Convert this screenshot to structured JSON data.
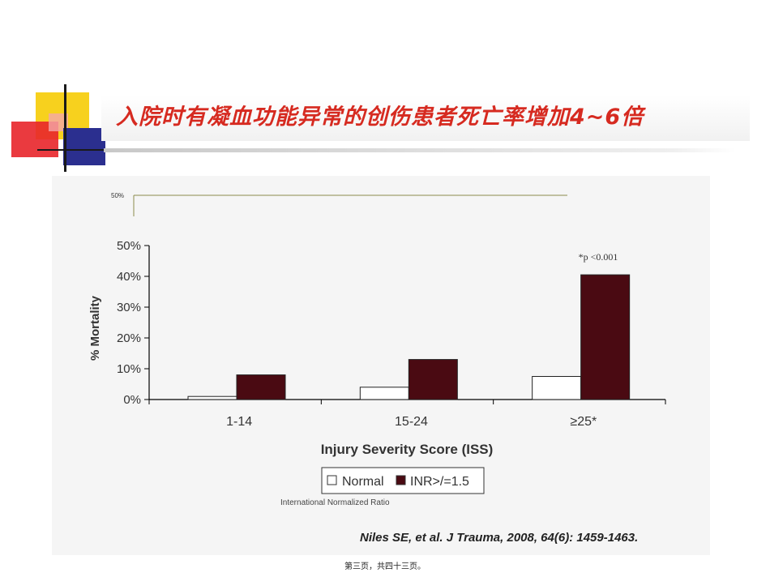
{
  "slide": {
    "title": "入院时有凝血功能异常的创伤患者死亡率增加4~6倍",
    "title_color": "#d62a20",
    "citation": "Niles SE, et al. J Trauma, 2008, 64(6): 1459-1463.",
    "footnote": "International Normalized Ratio",
    "page_footer": "第三页，共四十三页。",
    "top_axis_label": "50%"
  },
  "chart_data": {
    "type": "bar",
    "categories": [
      "1-14",
      "15-24",
      "≥25*"
    ],
    "series": [
      {
        "name": "Normal",
        "values": [
          1,
          4,
          7.5
        ],
        "color": "#ffffff"
      },
      {
        "name": "INR>/=1.5",
        "values": [
          8,
          13,
          40.5
        ],
        "color": "#4a0a12"
      }
    ],
    "title": "",
    "xlabel": "Injury Severity Score (ISS)",
    "ylabel": "% Mortality",
    "ylim": [
      0,
      50
    ],
    "yticks": [
      "0%",
      "10%",
      "20%",
      "30%",
      "40%",
      "50%"
    ],
    "ytick_values": [
      0,
      10,
      20,
      30,
      40,
      50
    ],
    "annotation": "*p <0.001",
    "legend_position": "bottom",
    "grid": false
  }
}
